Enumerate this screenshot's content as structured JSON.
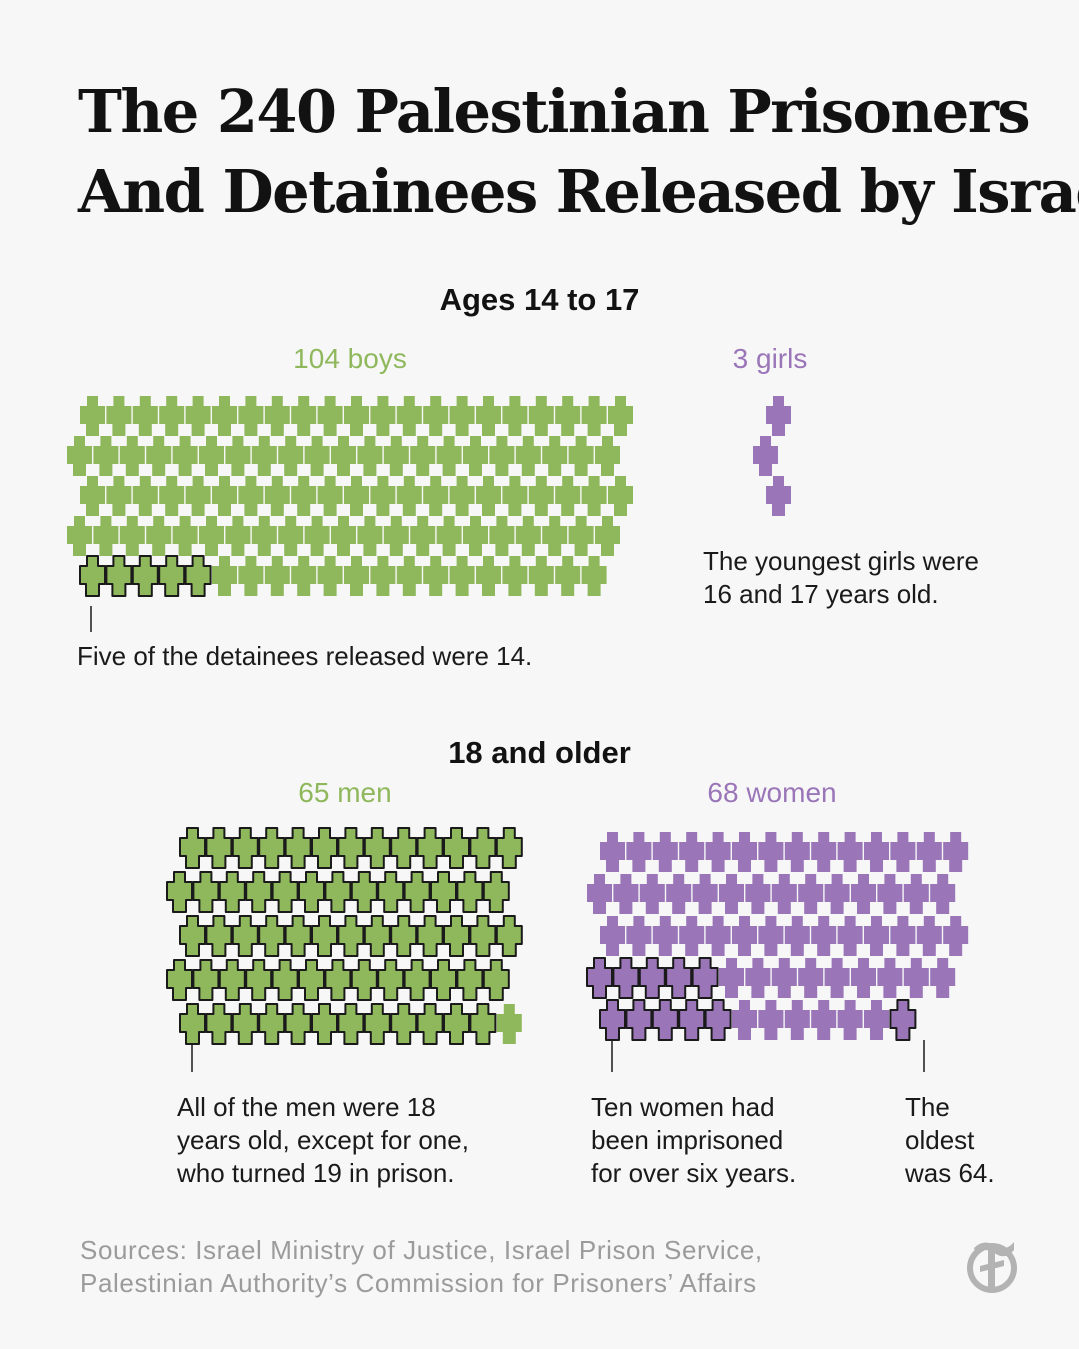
{
  "title_lines": [
    "The 240 Palestinian Prisoners",
    "And Detainees Released by Israel"
  ],
  "sections": {
    "minors": {
      "heading": "Ages 14 to 17",
      "boys_label": "104 boys",
      "girls_label": "3 girls",
      "note_boys": [
        "Five of the detainees released were 14."
      ],
      "note_girls": [
        "The youngest girls were",
        "16 and 17 years old."
      ]
    },
    "adults": {
      "heading": "18 and older",
      "men_label": "65 men",
      "women_label": "68 women",
      "note_men": [
        "All of the men were 18",
        "years old, except for one,",
        "who turned 19 in prison."
      ],
      "note_women": [
        "Ten women had",
        "been imprisoned",
        "for over six years."
      ],
      "note_oldest": [
        "The",
        "oldest",
        "was 64."
      ]
    }
  },
  "source_lines": [
    "Sources: Israel Ministry of Justice, Israel Prison Service,",
    "Palestinian Authority’s Commission for Prisoners’ Affairs"
  ],
  "colors": {
    "boys_men": "#8fb85c",
    "girls_women": "#9a75b8",
    "outline": "#1a1a1a"
  },
  "logo_icon": "nyt-logo-icon",
  "chart_data": [
    {
      "type": "unit",
      "title": "Ages 14 to 17",
      "categories": [
        "boys",
        "girls"
      ],
      "values": [
        104,
        3
      ],
      "highlight": {
        "category": "boys",
        "count": 5,
        "annotation": "Five of the detainees released were 14."
      },
      "girls_annotation": "The youngest girls were 16 and 17 years old."
    },
    {
      "type": "unit",
      "title": "18 and older",
      "categories": [
        "men",
        "women"
      ],
      "values": [
        65,
        68
      ],
      "highlight_men": {
        "count": 64,
        "annotation": "All of the men were 18 years old, except for one, who turned 19 in prison."
      },
      "highlight_women": {
        "count": 10,
        "annotation": "Ten women had been imprisoned for over six years."
      },
      "highlight_oldest": {
        "count": 1,
        "annotation": "The oldest was 64."
      }
    }
  ]
}
